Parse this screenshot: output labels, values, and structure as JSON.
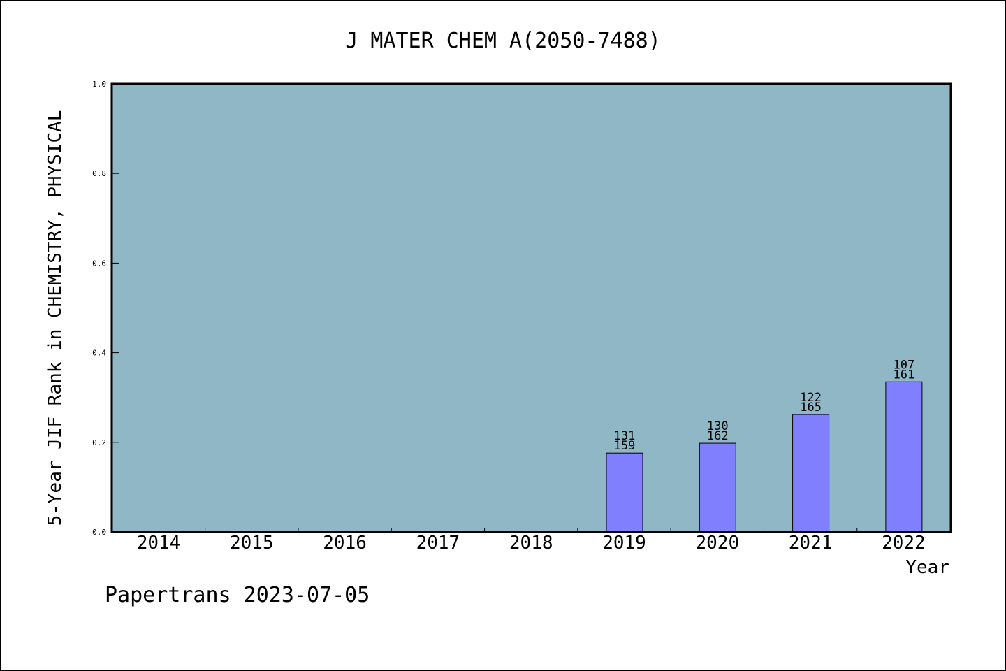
{
  "chart_data": {
    "type": "bar",
    "title": "J MATER CHEM A(2050-7488)",
    "xlabel": "Year",
    "ylabel": "5-Year JIF Rank in CHEMISTRY, PHYSICAL",
    "ylim": [
      0,
      1.0
    ],
    "yticks": [
      "0.0",
      "0.2",
      "0.4",
      "0.6",
      "0.8",
      "1.0"
    ],
    "categories": [
      "2014",
      "2015",
      "2016",
      "2017",
      "2018",
      "2019",
      "2020",
      "2021",
      "2022"
    ],
    "values": [
      null,
      null,
      null,
      null,
      null,
      0.176,
      0.198,
      0.262,
      0.335
    ],
    "bar_labels": [
      null,
      null,
      null,
      null,
      null,
      {
        "rank": "131",
        "total": "159"
      },
      {
        "rank": "130",
        "total": "162"
      },
      {
        "rank": "122",
        "total": "165"
      },
      {
        "rank": "107",
        "total": "161"
      }
    ],
    "grid": false,
    "colors": {
      "plot_background": "#8fb7c5",
      "bar_fill": "#8080ff",
      "bar_edge": "#000000"
    }
  },
  "footer": {
    "text": "Papertrans 2023-07-05"
  }
}
